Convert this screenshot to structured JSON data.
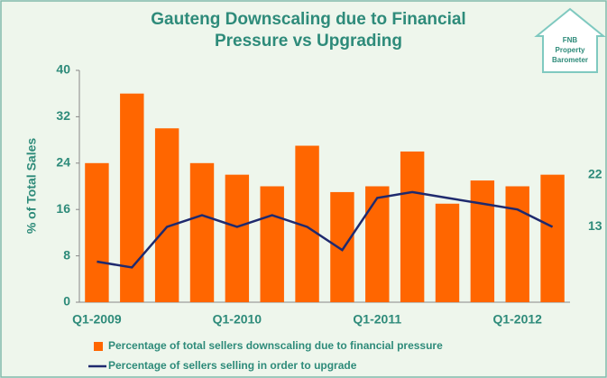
{
  "chart_data": {
    "type": "bar-line",
    "title": [
      "Gauteng Downscaling due to Financial",
      "Pressure vs Upgrading"
    ],
    "y_label": "% of Total Sales",
    "categories": [
      "Q1-2009",
      null,
      null,
      null,
      "Q1-2010",
      null,
      null,
      null,
      "Q1-2011",
      null,
      null,
      null,
      "Q1-2012",
      null
    ],
    "series": [
      {
        "name": "Percentage of total sellers downscaling due to financial pressure",
        "type": "bar",
        "color": "#ff6600",
        "values": [
          24,
          36,
          30,
          24,
          22,
          20,
          27,
          19,
          20,
          26,
          17,
          21,
          20,
          22
        ]
      },
      {
        "name": "Percentage of sellers selling in order to upgrade",
        "type": "line",
        "color": "#1f2a6e",
        "values": [
          7,
          6,
          13,
          15,
          13,
          15,
          13,
          9,
          18,
          19,
          18,
          17,
          16,
          13
        ]
      }
    ],
    "ylim": [
      0,
      40
    ],
    "yticks": [
      0,
      8,
      16,
      24,
      32,
      40
    ],
    "grid": false,
    "legend": "bottom"
  },
  "logo": {
    "lines": [
      "FNB",
      "Property",
      "Barometer"
    ]
  }
}
